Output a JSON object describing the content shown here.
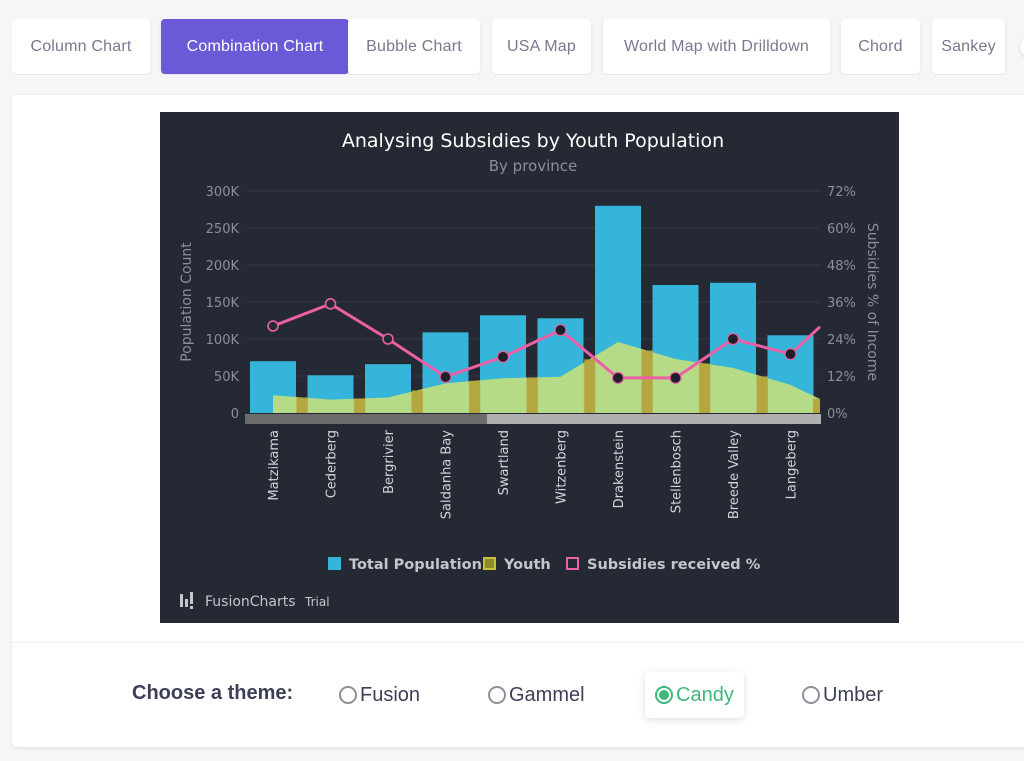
{
  "tabs": [
    {
      "label": "Column Chart",
      "active": false
    },
    {
      "label": "Combination Chart",
      "active": true
    },
    {
      "label": "Bubble Chart",
      "active": false
    },
    {
      "label": "USA Map",
      "active": false
    },
    {
      "label": "World Map with Drilldown",
      "active": false
    },
    {
      "label": "Chord",
      "active": false
    },
    {
      "label": "Sankey",
      "active": false
    }
  ],
  "theme_picker": {
    "label": "Choose a theme:",
    "options": [
      "Fusion",
      "Gammel",
      "Candy",
      "Umber"
    ],
    "selected": "Candy"
  },
  "branding": {
    "name": "FusionCharts",
    "suffix": "Trial"
  },
  "colors": {
    "background": "#242933",
    "total_population": "#35b5da",
    "youth": "#c8e07a",
    "youth_legend": "#8f8a2e",
    "subsidies": "#ec5fa6",
    "accent": "#6a5ad7",
    "selected_theme": "#3fb97a"
  },
  "chart_data": {
    "type": "combination",
    "title": "Analysing Subsidies by Youth Population",
    "subtitle": "By province",
    "ylabel": "Population Count",
    "y2label": "Subsidies % of Income",
    "ylim": [
      0,
      300000
    ],
    "y2lim": [
      0,
      72
    ],
    "yticks": [
      "0",
      "50K",
      "100K",
      "150K",
      "200K",
      "250K",
      "300K"
    ],
    "y2ticks": [
      "0%",
      "12%",
      "24%",
      "36%",
      "48%",
      "60%",
      "72%"
    ],
    "grid": true,
    "legend_position": "bottom",
    "categories": [
      "Matzikama",
      "Cederberg",
      "Bergrivier",
      "Saldanha Bay",
      "Swartland",
      "Witzenberg",
      "Drakenstein",
      "Stellenbosch",
      "Breede Valley",
      "Langeberg"
    ],
    "series": [
      {
        "name": "Total Population",
        "type": "column",
        "axis": "primary",
        "values": [
          70000,
          51000,
          66000,
          109000,
          132000,
          128000,
          280000,
          173000,
          176000,
          105000
        ]
      },
      {
        "name": "Youth",
        "type": "area",
        "axis": "primary",
        "values": [
          24000,
          18000,
          21000,
          40000,
          47000,
          49000,
          96000,
          73000,
          61000,
          38000
        ]
      },
      {
        "name": "Subsidies received %",
        "type": "line",
        "axis": "secondary",
        "values": [
          28.2,
          35.4,
          24.0,
          11.7,
          18.2,
          26.9,
          11.4,
          11.4,
          24.0,
          19.1
        ]
      }
    ],
    "scrollbar": {
      "visible_fraction": 0.42
    }
  }
}
